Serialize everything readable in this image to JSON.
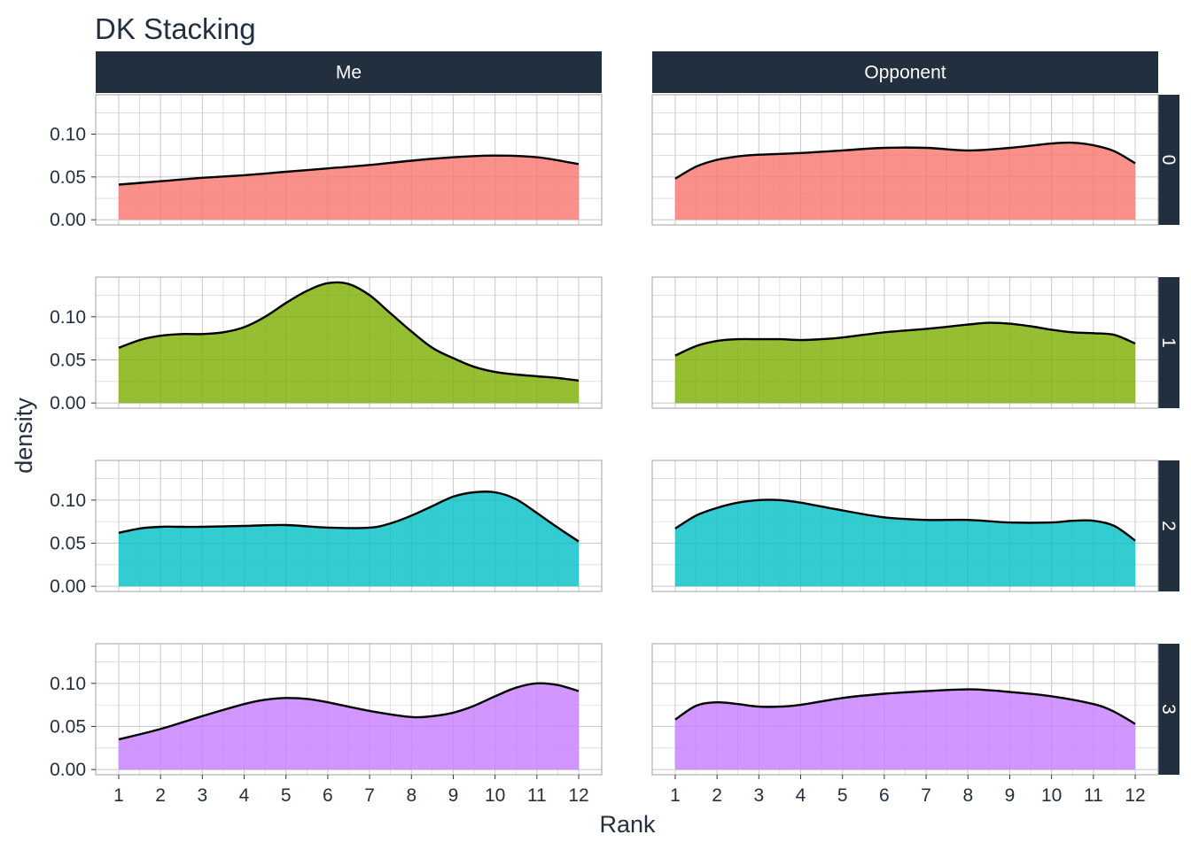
{
  "chart_data": {
    "type": "area",
    "title": "DK Stacking",
    "xlabel": "Rank",
    "ylabel": "density",
    "columns": [
      "Me",
      "Opponent"
    ],
    "rows": [
      "0",
      "1",
      "2",
      "3"
    ],
    "row_colors": [
      "#F8766D",
      "#7CAE00",
      "#00BFC4",
      "#C77CFF"
    ],
    "x_ticks": [
      1,
      2,
      3,
      4,
      5,
      6,
      7,
      8,
      9,
      10,
      11,
      12
    ],
    "y_ticks": [
      0.0,
      0.05,
      0.1
    ],
    "y_tick_labels": [
      "0.00",
      "0.05",
      "0.10"
    ],
    "xlim": [
      0.45,
      12.55
    ],
    "ylim": [
      -0.006,
      0.146
    ],
    "panels": [
      {
        "column": "Me",
        "row": "0",
        "x": [
          1,
          2,
          3,
          4,
          5,
          6,
          7,
          8,
          9,
          10,
          11,
          12
        ],
        "density": [
          0.041,
          0.045,
          0.049,
          0.052,
          0.056,
          0.06,
          0.064,
          0.069,
          0.073,
          0.075,
          0.073,
          0.065
        ]
      },
      {
        "column": "Opponent",
        "row": "0",
        "x": [
          1,
          1.5,
          2,
          2.5,
          3,
          4,
          5,
          6,
          7,
          8,
          9,
          10,
          10.5,
          11,
          11.5,
          12
        ],
        "density": [
          0.048,
          0.062,
          0.07,
          0.074,
          0.076,
          0.078,
          0.081,
          0.084,
          0.084,
          0.081,
          0.084,
          0.089,
          0.09,
          0.087,
          0.08,
          0.066
        ]
      },
      {
        "column": "Me",
        "row": "1",
        "x": [
          1,
          1.5,
          2,
          2.5,
          3,
          3.5,
          4,
          4.5,
          5,
          5.5,
          6,
          6.5,
          7,
          7.5,
          8,
          8.5,
          9,
          9.5,
          10,
          10.5,
          11,
          11.5,
          12
        ],
        "density": [
          0.064,
          0.073,
          0.078,
          0.08,
          0.08,
          0.082,
          0.088,
          0.1,
          0.116,
          0.13,
          0.139,
          0.138,
          0.125,
          0.104,
          0.083,
          0.064,
          0.052,
          0.042,
          0.036,
          0.033,
          0.031,
          0.029,
          0.026
        ]
      },
      {
        "column": "Opponent",
        "row": "1",
        "x": [
          1,
          1.5,
          2,
          2.5,
          3,
          3.5,
          4,
          4.5,
          5,
          6,
          7,
          8,
          8.5,
          9,
          9.5,
          10,
          10.5,
          11,
          11.5,
          12
        ],
        "density": [
          0.055,
          0.066,
          0.072,
          0.074,
          0.074,
          0.074,
          0.073,
          0.074,
          0.076,
          0.082,
          0.086,
          0.091,
          0.093,
          0.092,
          0.089,
          0.085,
          0.082,
          0.081,
          0.079,
          0.069
        ]
      },
      {
        "column": "Me",
        "row": "2",
        "x": [
          1,
          1.5,
          2,
          2.5,
          3,
          4,
          5,
          6,
          7,
          7.5,
          8,
          8.5,
          9,
          9.5,
          10,
          10.5,
          11,
          11.5,
          12
        ],
        "density": [
          0.062,
          0.067,
          0.069,
          0.069,
          0.069,
          0.07,
          0.071,
          0.068,
          0.068,
          0.073,
          0.082,
          0.093,
          0.104,
          0.109,
          0.109,
          0.101,
          0.085,
          0.068,
          0.052
        ]
      },
      {
        "column": "Opponent",
        "row": "2",
        "x": [
          1,
          1.5,
          2,
          2.5,
          3,
          3.5,
          4,
          5,
          6,
          7,
          8,
          9,
          10,
          10.5,
          11,
          11.5,
          12
        ],
        "density": [
          0.067,
          0.082,
          0.091,
          0.097,
          0.1,
          0.1,
          0.097,
          0.088,
          0.08,
          0.077,
          0.077,
          0.074,
          0.074,
          0.076,
          0.076,
          0.07,
          0.053
        ]
      },
      {
        "column": "Me",
        "row": "3",
        "x": [
          1,
          2,
          3,
          4,
          4.5,
          5,
          5.5,
          6,
          7,
          8,
          8.5,
          9,
          9.5,
          10,
          10.5,
          11,
          11.5,
          12
        ],
        "density": [
          0.035,
          0.047,
          0.062,
          0.076,
          0.081,
          0.083,
          0.082,
          0.078,
          0.068,
          0.061,
          0.062,
          0.066,
          0.074,
          0.085,
          0.095,
          0.1,
          0.098,
          0.091
        ]
      },
      {
        "column": "Opponent",
        "row": "3",
        "x": [
          1,
          1.5,
          2,
          2.5,
          3,
          3.5,
          4,
          5,
          6,
          7,
          8,
          8.5,
          9,
          10,
          11,
          11.5,
          12
        ],
        "density": [
          0.058,
          0.074,
          0.078,
          0.076,
          0.073,
          0.073,
          0.075,
          0.083,
          0.088,
          0.091,
          0.093,
          0.092,
          0.09,
          0.085,
          0.076,
          0.067,
          0.053
        ]
      }
    ]
  },
  "colors": {
    "strip_bg": "#222f3e",
    "panel_border": "#a0a0a0",
    "grid": "#cccccc",
    "outline": "#000000",
    "text": "#24303f"
  }
}
